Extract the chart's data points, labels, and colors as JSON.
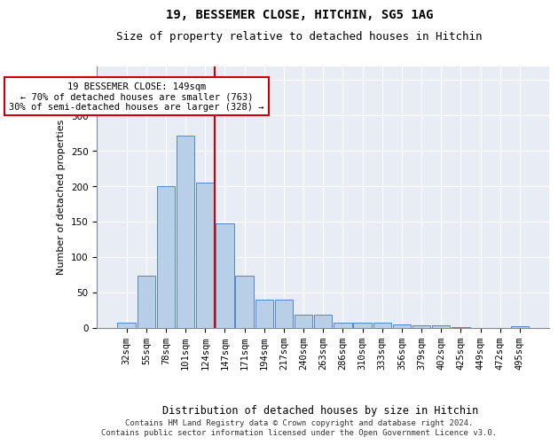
{
  "title1": "19, BESSEMER CLOSE, HITCHIN, SG5 1AG",
  "title2": "Size of property relative to detached houses in Hitchin",
  "xlabel": "Distribution of detached houses by size in Hitchin",
  "ylabel": "Number of detached properties",
  "bar_values": [
    7,
    73,
    200,
    272,
    205,
    148,
    74,
    40,
    40,
    18,
    18,
    7,
    7,
    7,
    5,
    3,
    3,
    1,
    0,
    0,
    2
  ],
  "bin_labels": [
    "32sqm",
    "55sqm",
    "78sqm",
    "101sqm",
    "124sqm",
    "147sqm",
    "171sqm",
    "194sqm",
    "217sqm",
    "240sqm",
    "263sqm",
    "286sqm",
    "310sqm",
    "333sqm",
    "356sqm",
    "379sqm",
    "402sqm",
    "425sqm",
    "449sqm",
    "472sqm",
    "495sqm"
  ],
  "bar_color": "#b8cfe8",
  "bar_edge_color": "#5585c5",
  "vline_color": "#cc0000",
  "annotation_text": "19 BESSEMER CLOSE: 149sqm\n← 70% of detached houses are smaller (763)\n30% of semi-detached houses are larger (328) →",
  "annotation_box_facecolor": "#ffffff",
  "annotation_box_edgecolor": "#cc0000",
  "ylim": [
    0,
    370
  ],
  "yticks": [
    0,
    50,
    100,
    150,
    200,
    250,
    300,
    350
  ],
  "background_color": "#e8edf5",
  "footer": "Contains HM Land Registry data © Crown copyright and database right 2024.\nContains public sector information licensed under the Open Government Licence v3.0.",
  "title_fontsize": 10,
  "subtitle_fontsize": 9,
  "xlabel_fontsize": 8.5,
  "ylabel_fontsize": 8,
  "tick_fontsize": 7.5,
  "footer_fontsize": 6.5,
  "ann_fontsize": 7.5
}
